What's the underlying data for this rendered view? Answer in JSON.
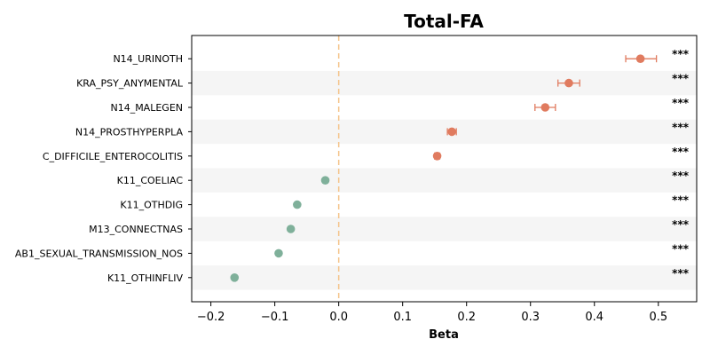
{
  "chart_data": {
    "type": "scatter",
    "title": "Total-FA",
    "xlabel": "Beta",
    "ylabel": "",
    "xlim": [
      -0.23,
      0.56
    ],
    "xticks": [
      -0.2,
      -0.1,
      0.0,
      0.1,
      0.2,
      0.3,
      0.4,
      0.5
    ],
    "xtick_labels": [
      "−0.2",
      "−0.1",
      "0.0",
      "0.1",
      "0.2",
      "0.3",
      "0.4",
      "0.5"
    ],
    "reference_line": 0.0,
    "alternating_row_bands": true,
    "colors": {
      "positive": "#e07b5f",
      "negative": "#7fb09a",
      "reference": "#f5c48a",
      "band": "#f5f5f5"
    },
    "points": [
      {
        "label": "N14_URINOTH",
        "beta": 0.472,
        "ci": [
          0.449,
          0.497
        ],
        "sig": "***"
      },
      {
        "label": "KRA_PSY_ANYMENTAL",
        "beta": 0.36,
        "ci": [
          0.343,
          0.377
        ],
        "sig": "***"
      },
      {
        "label": "N14_MALEGEN",
        "beta": 0.323,
        "ci": [
          0.307,
          0.339
        ],
        "sig": "***"
      },
      {
        "label": "N14_PROSTHYPERPLA",
        "beta": 0.177,
        "ci": [
          0.17,
          0.184
        ],
        "sig": "***"
      },
      {
        "label": "C_DIFFICILE_ENTEROCOLITIS",
        "beta": 0.154,
        "ci": [
          0.15,
          0.158
        ],
        "sig": "***"
      },
      {
        "label": "K11_COELIAC",
        "beta": -0.021,
        "ci": [
          -0.023,
          -0.019
        ],
        "sig": "***"
      },
      {
        "label": "K11_OTHDIG",
        "beta": -0.065,
        "ci": [
          -0.067,
          -0.063
        ],
        "sig": "***"
      },
      {
        "label": "M13_CONNECTNAS",
        "beta": -0.075,
        "ci": [
          -0.077,
          -0.073
        ],
        "sig": "***"
      },
      {
        "label": "AB1_SEXUAL_TRANSMISSION_NOS",
        "beta": -0.094,
        "ci": [
          -0.096,
          -0.092
        ],
        "sig": "***"
      },
      {
        "label": "K11_OTHINFLIV",
        "beta": -0.163,
        "ci": [
          -0.165,
          -0.161
        ],
        "sig": "***"
      }
    ]
  }
}
